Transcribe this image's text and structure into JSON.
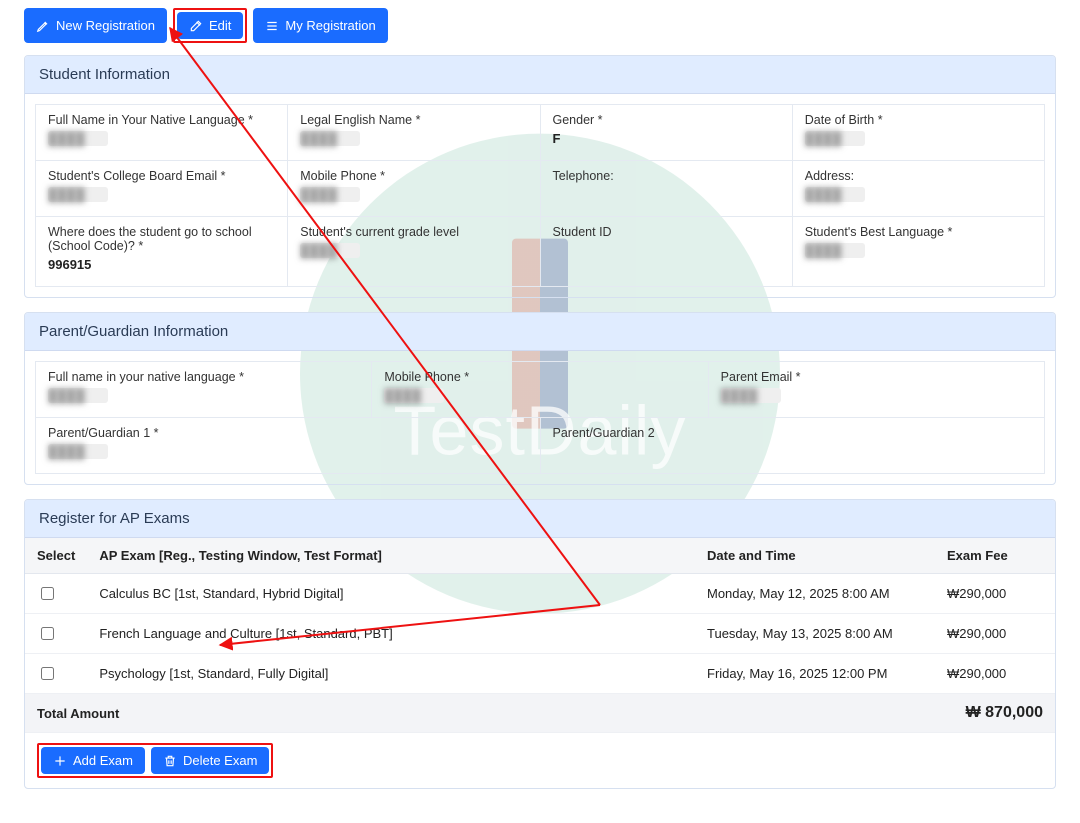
{
  "colors": {
    "primary": "#1a6cff",
    "panelHeaderBg": "#e0ecff",
    "panelBorder": "#d6e0f0",
    "gridBorder": "#e4e9f1",
    "tableHeaderBg": "#f5f6f8",
    "totalBg": "#f3f4f7",
    "highlight": "#e11a1a",
    "watermarkCircle": "#c9e5db"
  },
  "watermark": {
    "text": "TestDaily"
  },
  "topButtons": {
    "newRegistration": "New Registration",
    "edit": "Edit",
    "myRegistration": "My Registration"
  },
  "studentInfo": {
    "header": "Student Information",
    "rows": [
      [
        {
          "label": "Full Name in Your Native Language *",
          "value": "",
          "blur": true
        },
        {
          "label": "Legal English Name *",
          "value": "",
          "blur": true
        },
        {
          "label": "Gender *",
          "value": "F",
          "bold": true
        },
        {
          "label": "Date of Birth *",
          "value": "",
          "blur": true
        }
      ],
      [
        {
          "label": "Student's College Board Email *",
          "value": "",
          "blur": true
        },
        {
          "label": "Mobile Phone *",
          "value": "",
          "blur": true
        },
        {
          "label": "Telephone:",
          "value": ""
        },
        {
          "label": "Address:",
          "value": "",
          "blur": true
        }
      ],
      [
        {
          "label": "Where does the student go to school (School Code)? *",
          "value": "996915",
          "bold": true
        },
        {
          "label": "Student's current grade level",
          "value": "",
          "blur": true
        },
        {
          "label": "Student ID",
          "value": ""
        },
        {
          "label": "Student's Best Language *",
          "value": "",
          "blur": true
        }
      ]
    ]
  },
  "parentInfo": {
    "header": "Parent/Guardian Information",
    "rows": [
      [
        {
          "label": "Full name in your native language *",
          "value": "",
          "blur": true
        },
        {
          "label": "Mobile Phone *",
          "value": "",
          "blur": true
        },
        {
          "label": "Parent Email *",
          "value": "",
          "blur": true
        }
      ],
      [
        {
          "label": "Parent/Guardian 1 *",
          "value": "",
          "blur": true
        },
        {
          "label": "Parent/Guardian 2",
          "value": ""
        }
      ]
    ]
  },
  "exams": {
    "header": "Register for AP Exams",
    "columns": {
      "select": "Select",
      "exam": "AP Exam [Reg., Testing Window, Test Format]",
      "date": "Date and Time",
      "fee": "Exam Fee"
    },
    "rows": [
      {
        "name": "Calculus BC [1st, Standard, Hybrid Digital]",
        "date": "Monday, May 12, 2025 8:00 AM",
        "fee": "₩290,000"
      },
      {
        "name": "French Language and Culture [1st, Standard, PBT]",
        "date": "Tuesday, May 13, 2025 8:00 AM",
        "fee": "₩290,000"
      },
      {
        "name": "Psychology [1st, Standard, Fully Digital]",
        "date": "Friday, May 16, 2025 12:00 PM",
        "fee": "₩290,000"
      }
    ],
    "totalLabel": "Total Amount",
    "totalValue": "₩ 870,000",
    "actions": {
      "add": "Add Exam",
      "delete": "Delete Exam"
    }
  }
}
